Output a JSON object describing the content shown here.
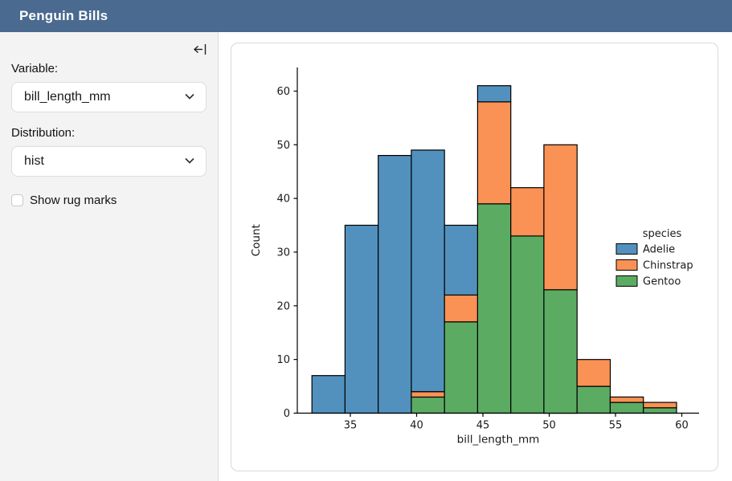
{
  "header": {
    "title": "Penguin Bills",
    "bg_color": "#4a6a90",
    "text_color": "#ffffff"
  },
  "sidebar": {
    "collapse_icon": "collapse-sidebar-left",
    "fields": {
      "variable": {
        "label": "Variable:",
        "value": "bill_length_mm"
      },
      "distribution": {
        "label": "Distribution:",
        "value": "hist"
      }
    },
    "rug_checkbox": {
      "label": "Show rug marks",
      "checked": false
    }
  },
  "chart_data": {
    "type": "bar",
    "subtype": "stacked-histogram",
    "title": "",
    "xlabel": "bill_length_mm",
    "ylabel": "Count",
    "bin_edges": [
      32.1,
      34.6,
      37.1,
      39.6,
      42.1,
      44.6,
      47.1,
      49.6,
      52.1,
      54.6,
      57.1,
      59.6
    ],
    "series": [
      {
        "name": "Adelie",
        "color": "#5291bd",
        "values": [
          7,
          35,
          48,
          45,
          13,
          3,
          0,
          0,
          0,
          0,
          0
        ]
      },
      {
        "name": "Chinstrap",
        "color": "#fa9155",
        "values": [
          0,
          0,
          0,
          1,
          5,
          19,
          9,
          27,
          5,
          1,
          1
        ]
      },
      {
        "name": "Gentoo",
        "color": "#5cab63",
        "values": [
          0,
          0,
          0,
          3,
          17,
          39,
          33,
          23,
          5,
          2,
          1
        ]
      }
    ],
    "stack_bottom_to_top": [
      "Gentoo",
      "Chinstrap",
      "Adelie"
    ],
    "bin_totals": [
      7,
      35,
      48,
      49,
      35,
      61,
      42,
      50,
      10,
      3,
      2
    ],
    "x_ticks": [
      35,
      40,
      45,
      50,
      55,
      60
    ],
    "y_ticks": [
      0,
      10,
      20,
      30,
      40,
      50,
      60
    ],
    "xlim": [
      31.0,
      61.3
    ],
    "ylim": [
      0,
      64.4
    ],
    "legend": {
      "title": "species",
      "position": "center-right",
      "entries": [
        "Adelie",
        "Chinstrap",
        "Gentoo"
      ]
    },
    "bar_edge_color": "#000000",
    "axis_color": "#000000",
    "grid": false
  }
}
